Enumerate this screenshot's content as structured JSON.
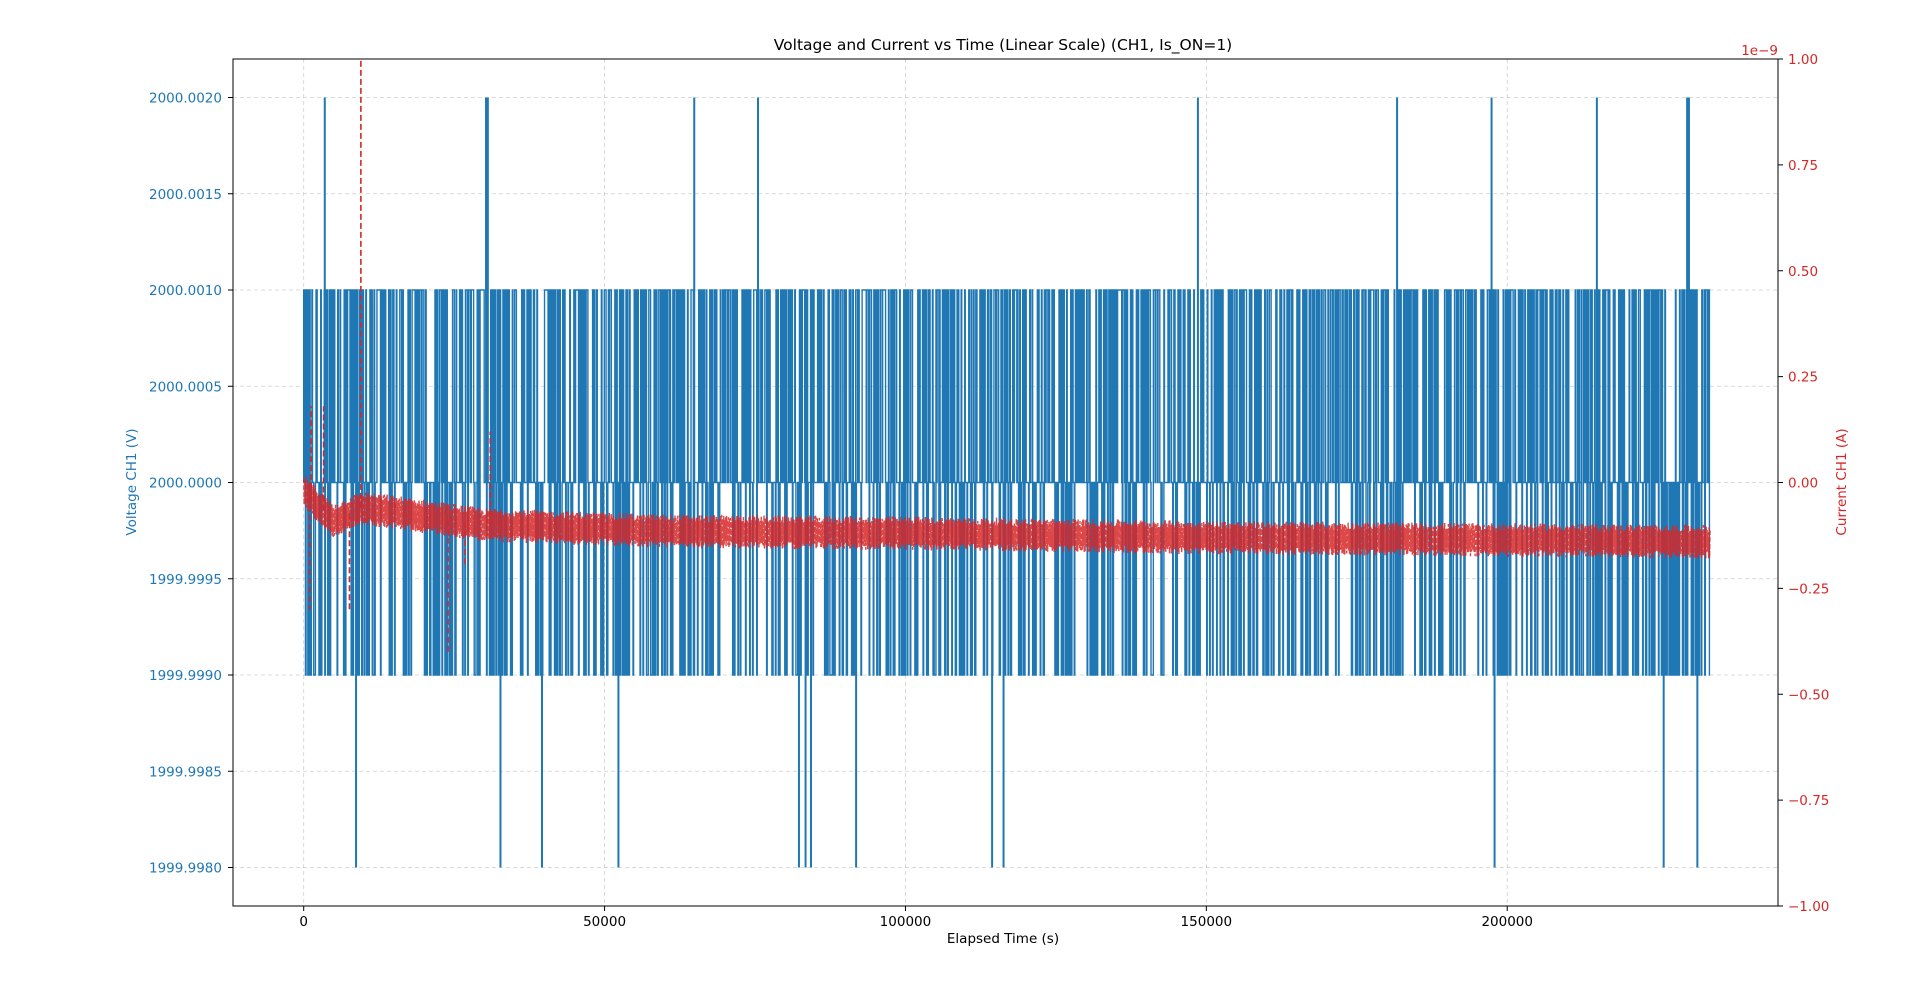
{
  "chart_data": {
    "type": "line",
    "title": "Voltage and Current vs Time (Linear Scale) (CH1, Is_ON=1)",
    "xlabel": "Elapsed Time (s)",
    "ylabel_left": "Voltage CH1 (V)",
    "ylabel_right": "Current CH1 (A)",
    "right_axis_multiplier": "1e−9",
    "xlim": [
      -11750,
      245000
    ],
    "ylim_left": [
      1999.9978,
      2000.0022
    ],
    "ylim_right": [
      -1.0,
      1.0
    ],
    "x_ticks": [
      0,
      50000,
      100000,
      150000,
      200000
    ],
    "x_tick_labels": [
      "0",
      "50000",
      "100000",
      "150000",
      "200000"
    ],
    "y_left_ticks": [
      1999.998,
      1999.9985,
      1999.999,
      1999.9995,
      2000.0,
      2000.0005,
      2000.001,
      2000.0015,
      2000.002
    ],
    "y_left_tick_labels": [
      "1999.9980",
      "1999.9985",
      "1999.9990",
      "1999.9995",
      "2000.0000",
      "2000.0005",
      "2000.0010",
      "2000.0015",
      "2000.0020"
    ],
    "y_right_ticks": [
      -1.0,
      -0.75,
      -0.5,
      -0.25,
      0.0,
      0.25,
      0.5,
      0.75,
      1.0
    ],
    "y_right_tick_labels": [
      "−1.00",
      "−0.75",
      "−0.50",
      "−0.25",
      "0.00",
      "0.25",
      "0.50",
      "0.75",
      "1.00"
    ],
    "grid": true,
    "colors": {
      "voltage": "#1f77b4",
      "current": "#d62728",
      "grid": "#b0b0b0",
      "axis": "#000000"
    },
    "series": [
      {
        "name": "Voltage CH1 (V)",
        "axis": "left",
        "style": "solid",
        "x_range": [
          0,
          233700
        ],
        "levels": [
          1999.999,
          2000.0,
          2000.001
        ],
        "spikes_high": [
          {
            "x": 3500,
            "y": 2000.002
          },
          {
            "x": 30300,
            "y": 2000.002
          },
          {
            "x": 30600,
            "y": 2000.002
          },
          {
            "x": 64900,
            "y": 2000.002
          },
          {
            "x": 75500,
            "y": 2000.002
          },
          {
            "x": 148600,
            "y": 2000.002
          },
          {
            "x": 181700,
            "y": 2000.002
          },
          {
            "x": 197400,
            "y": 2000.002
          },
          {
            "x": 214900,
            "y": 2000.002
          },
          {
            "x": 229900,
            "y": 2000.002
          },
          {
            "x": 230200,
            "y": 2000.002
          }
        ],
        "spikes_low": [
          {
            "x": 8700,
            "y": 1999.998
          },
          {
            "x": 32700,
            "y": 1999.998
          },
          {
            "x": 39600,
            "y": 1999.998
          },
          {
            "x": 52300,
            "y": 1999.998
          },
          {
            "x": 82300,
            "y": 1999.998
          },
          {
            "x": 83400,
            "y": 1999.998
          },
          {
            "x": 84300,
            "y": 1999.998
          },
          {
            "x": 91800,
            "y": 1999.998
          },
          {
            "x": 114400,
            "y": 1999.998
          },
          {
            "x": 116300,
            "y": 1999.998
          },
          {
            "x": 197900,
            "y": 1999.998
          },
          {
            "x": 226000,
            "y": 1999.998
          },
          {
            "x": 231600,
            "y": 1999.998
          }
        ]
      },
      {
        "name": "Current CH1 (A)",
        "axis": "right",
        "style": "dashed",
        "x_range": [
          0,
          233700
        ],
        "trend": [
          {
            "x": 0,
            "y": -0.02
          },
          {
            "x": 5000,
            "y": -0.09
          },
          {
            "x": 9500,
            "y": -0.06
          },
          {
            "x": 15000,
            "y": -0.07
          },
          {
            "x": 30000,
            "y": -0.1
          },
          {
            "x": 60000,
            "y": -0.115
          },
          {
            "x": 100000,
            "y": -0.12
          },
          {
            "x": 150000,
            "y": -0.13
          },
          {
            "x": 233700,
            "y": -0.14
          }
        ],
        "noise_band": 0.04,
        "spikes": [
          {
            "x": 9500,
            "y": 1.0
          },
          {
            "x": 1200,
            "y": 0.18
          },
          {
            "x": 1000,
            "y": -0.3
          },
          {
            "x": 3300,
            "y": 0.18
          },
          {
            "x": 7600,
            "y": -0.3
          },
          {
            "x": 24000,
            "y": -0.4
          },
          {
            "x": 31000,
            "y": 0.12
          },
          {
            "x": 26800,
            "y": -0.2
          }
        ]
      }
    ]
  }
}
